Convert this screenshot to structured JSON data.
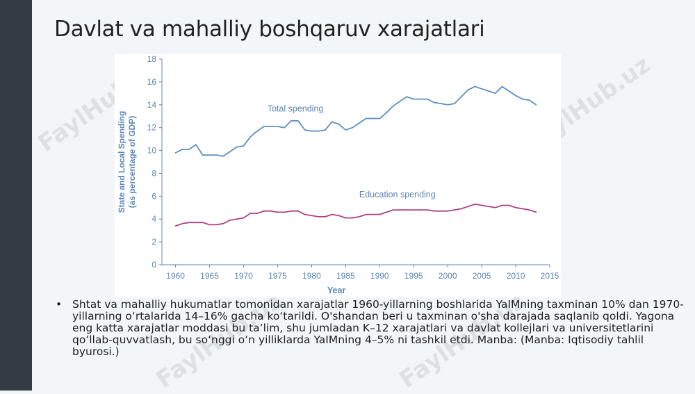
{
  "slide": {
    "title": "Davlat va mahalliy boshqaruv xarajatlari",
    "bullet_marker": "•",
    "bullet_text": "Shtat va mahalliy hukumatlar tomonidan xarajatlar 1960-yillarning boshlarida YaIMning taxminan 10% dan 1970-yillarning oʻrtalarida 14–16% gacha koʻtarildi. O'shandan beri u taxminan o'sha darajada saqlanib qoldi. Yagona eng katta xarajatlar moddasi bu taʼlim, shu jumladan K–12 xarajatlari va davlat kollejlari va universitetlarini qoʻllab-quvvatlash, bu soʻnggi oʻn yilliklarda YaIMning 4–5% ni tashkil etdi. Manba: (Manba: Iqtisodiy tahlil byurosi.)",
    "watermark": "FaylHub.uz"
  },
  "chart_data": {
    "type": "line",
    "title": "",
    "xlabel": "Year",
    "ylabel": "State and Local Spending (as percentage of GDP)",
    "ylabel_lines": [
      "State and Local Spending",
      "(as percentage of GDP)"
    ],
    "xlim": [
      1958,
      2015
    ],
    "ylim": [
      0,
      18
    ],
    "xticks": [
      1960,
      1965,
      1970,
      1975,
      1980,
      1985,
      1990,
      1995,
      2000,
      2005,
      2010,
      2015
    ],
    "yticks": [
      0,
      2,
      4,
      6,
      8,
      10,
      12,
      14,
      16,
      18
    ],
    "grid": false,
    "axis_color": "#5b87b6",
    "series": [
      {
        "name": "Total spending",
        "color": "#5a8fc2",
        "x": [
          1960,
          1961,
          1962,
          1963,
          1964,
          1965,
          1966,
          1967,
          1968,
          1969,
          1970,
          1971,
          1972,
          1973,
          1974,
          1975,
          1976,
          1977,
          1978,
          1979,
          1980,
          1981,
          1982,
          1983,
          1984,
          1985,
          1986,
          1987,
          1988,
          1989,
          1990,
          1991,
          1992,
          1993,
          1994,
          1995,
          1996,
          1997,
          1998,
          1999,
          2000,
          2001,
          2002,
          2003,
          2004,
          2005,
          2006,
          2007,
          2008,
          2009,
          2010,
          2011,
          2012,
          2013
        ],
        "values": [
          9.8,
          10.1,
          10.1,
          10.5,
          9.6,
          9.6,
          9.6,
          9.5,
          9.9,
          10.3,
          10.4,
          11.2,
          11.7,
          12.1,
          12.1,
          12.1,
          12.0,
          12.6,
          12.6,
          11.8,
          11.7,
          11.7,
          11.8,
          12.5,
          12.3,
          11.8,
          12.0,
          12.4,
          12.8,
          12.8,
          12.8,
          13.3,
          13.9,
          14.3,
          14.7,
          14.5,
          14.5,
          14.5,
          14.2,
          14.1,
          14.0,
          14.1,
          14.7,
          15.3,
          15.6,
          15.4,
          15.2,
          15.0,
          15.6,
          15.2,
          14.8,
          14.5,
          14.4,
          14.0
        ],
        "label_anchor": [
          1973.5,
          13.4
        ]
      },
      {
        "name": "Education spending",
        "color": "#b0427f",
        "x": [
          1960,
          1961,
          1962,
          1963,
          1964,
          1965,
          1966,
          1967,
          1968,
          1969,
          1970,
          1971,
          1972,
          1973,
          1974,
          1975,
          1976,
          1977,
          1978,
          1979,
          1980,
          1981,
          1982,
          1983,
          1984,
          1985,
          1986,
          1987,
          1988,
          1989,
          1990,
          1991,
          1992,
          1993,
          1994,
          1995,
          1996,
          1997,
          1998,
          1999,
          2000,
          2001,
          2002,
          2003,
          2004,
          2005,
          2006,
          2007,
          2008,
          2009,
          2010,
          2011,
          2012,
          2013
        ],
        "values": [
          3.4,
          3.6,
          3.7,
          3.7,
          3.7,
          3.5,
          3.5,
          3.6,
          3.9,
          4.0,
          4.1,
          4.5,
          4.5,
          4.7,
          4.7,
          4.6,
          4.6,
          4.7,
          4.7,
          4.4,
          4.3,
          4.2,
          4.2,
          4.4,
          4.3,
          4.1,
          4.1,
          4.2,
          4.4,
          4.4,
          4.4,
          4.6,
          4.8,
          4.8,
          4.8,
          4.8,
          4.8,
          4.8,
          4.7,
          4.7,
          4.7,
          4.8,
          4.9,
          5.1,
          5.3,
          5.2,
          5.1,
          5.0,
          5.2,
          5.2,
          5.0,
          4.9,
          4.8,
          4.6
        ],
        "label_anchor": [
          1987.0,
          5.9
        ]
      }
    ]
  }
}
